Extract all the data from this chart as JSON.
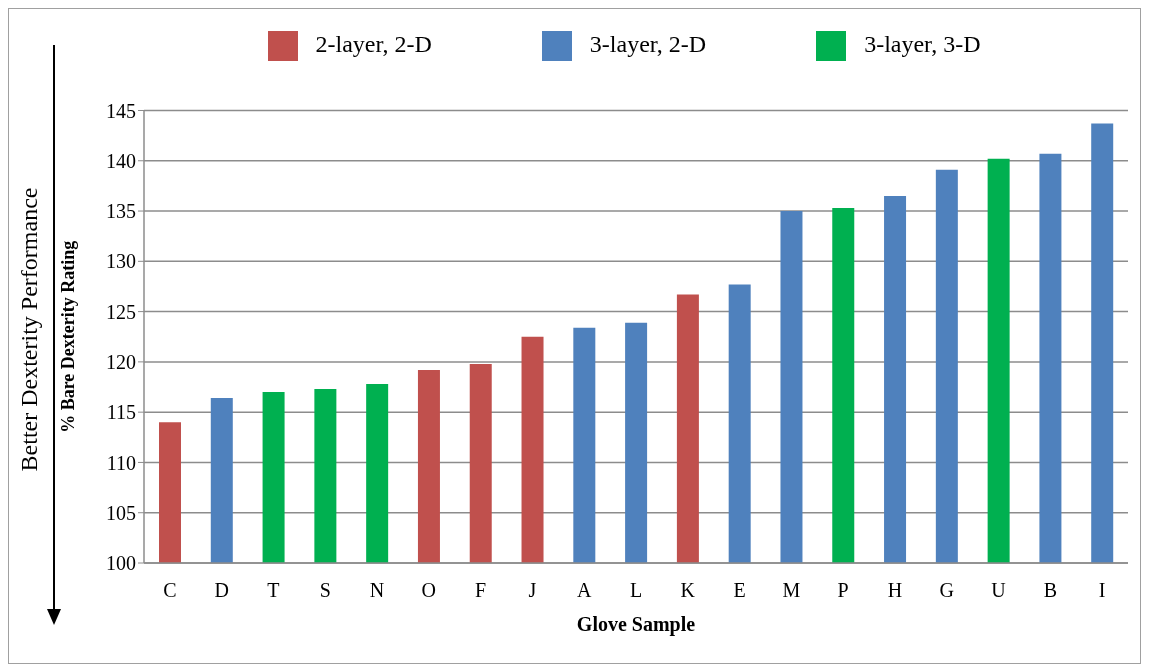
{
  "chart_data": {
    "type": "bar",
    "stacked": true,
    "categories": [
      "C",
      "D",
      "T",
      "S",
      "N",
      "O",
      "F",
      "J",
      "A",
      "L",
      "K",
      "E",
      "M",
      "P",
      "H",
      "G",
      "U",
      "B",
      "I"
    ],
    "series": [
      {
        "name": "2-layer, 2-D",
        "color": "#c0504d",
        "values": [
          114.0,
          null,
          null,
          null,
          null,
          119.2,
          119.8,
          122.5,
          null,
          null,
          126.7,
          null,
          null,
          null,
          null,
          null,
          null,
          null,
          null
        ]
      },
      {
        "name": "3-layer, 3-D",
        "color": "#00b050",
        "values": [
          null,
          null,
          117.0,
          117.3,
          117.8,
          null,
          null,
          null,
          null,
          null,
          null,
          null,
          null,
          135.3,
          null,
          null,
          140.2,
          null,
          null
        ]
      },
      {
        "name": "3-layer, 2-D",
        "color": "#4f81bd",
        "values": [
          null,
          116.4,
          null,
          null,
          null,
          null,
          null,
          null,
          123.4,
          123.9,
          null,
          127.7,
          135.0,
          null,
          136.5,
          139.1,
          null,
          140.7,
          143.7
        ]
      }
    ],
    "xlabel": "Glove Sample",
    "ylabel": "% Bare Dexterity Rating",
    "ylim": [
      100,
      145
    ],
    "yticks": [
      100,
      105,
      110,
      115,
      120,
      125,
      130,
      135,
      140,
      145
    ],
    "grid": "y",
    "legend": "top",
    "annotations": [
      "Better Dexterity Performance"
    ]
  }
}
